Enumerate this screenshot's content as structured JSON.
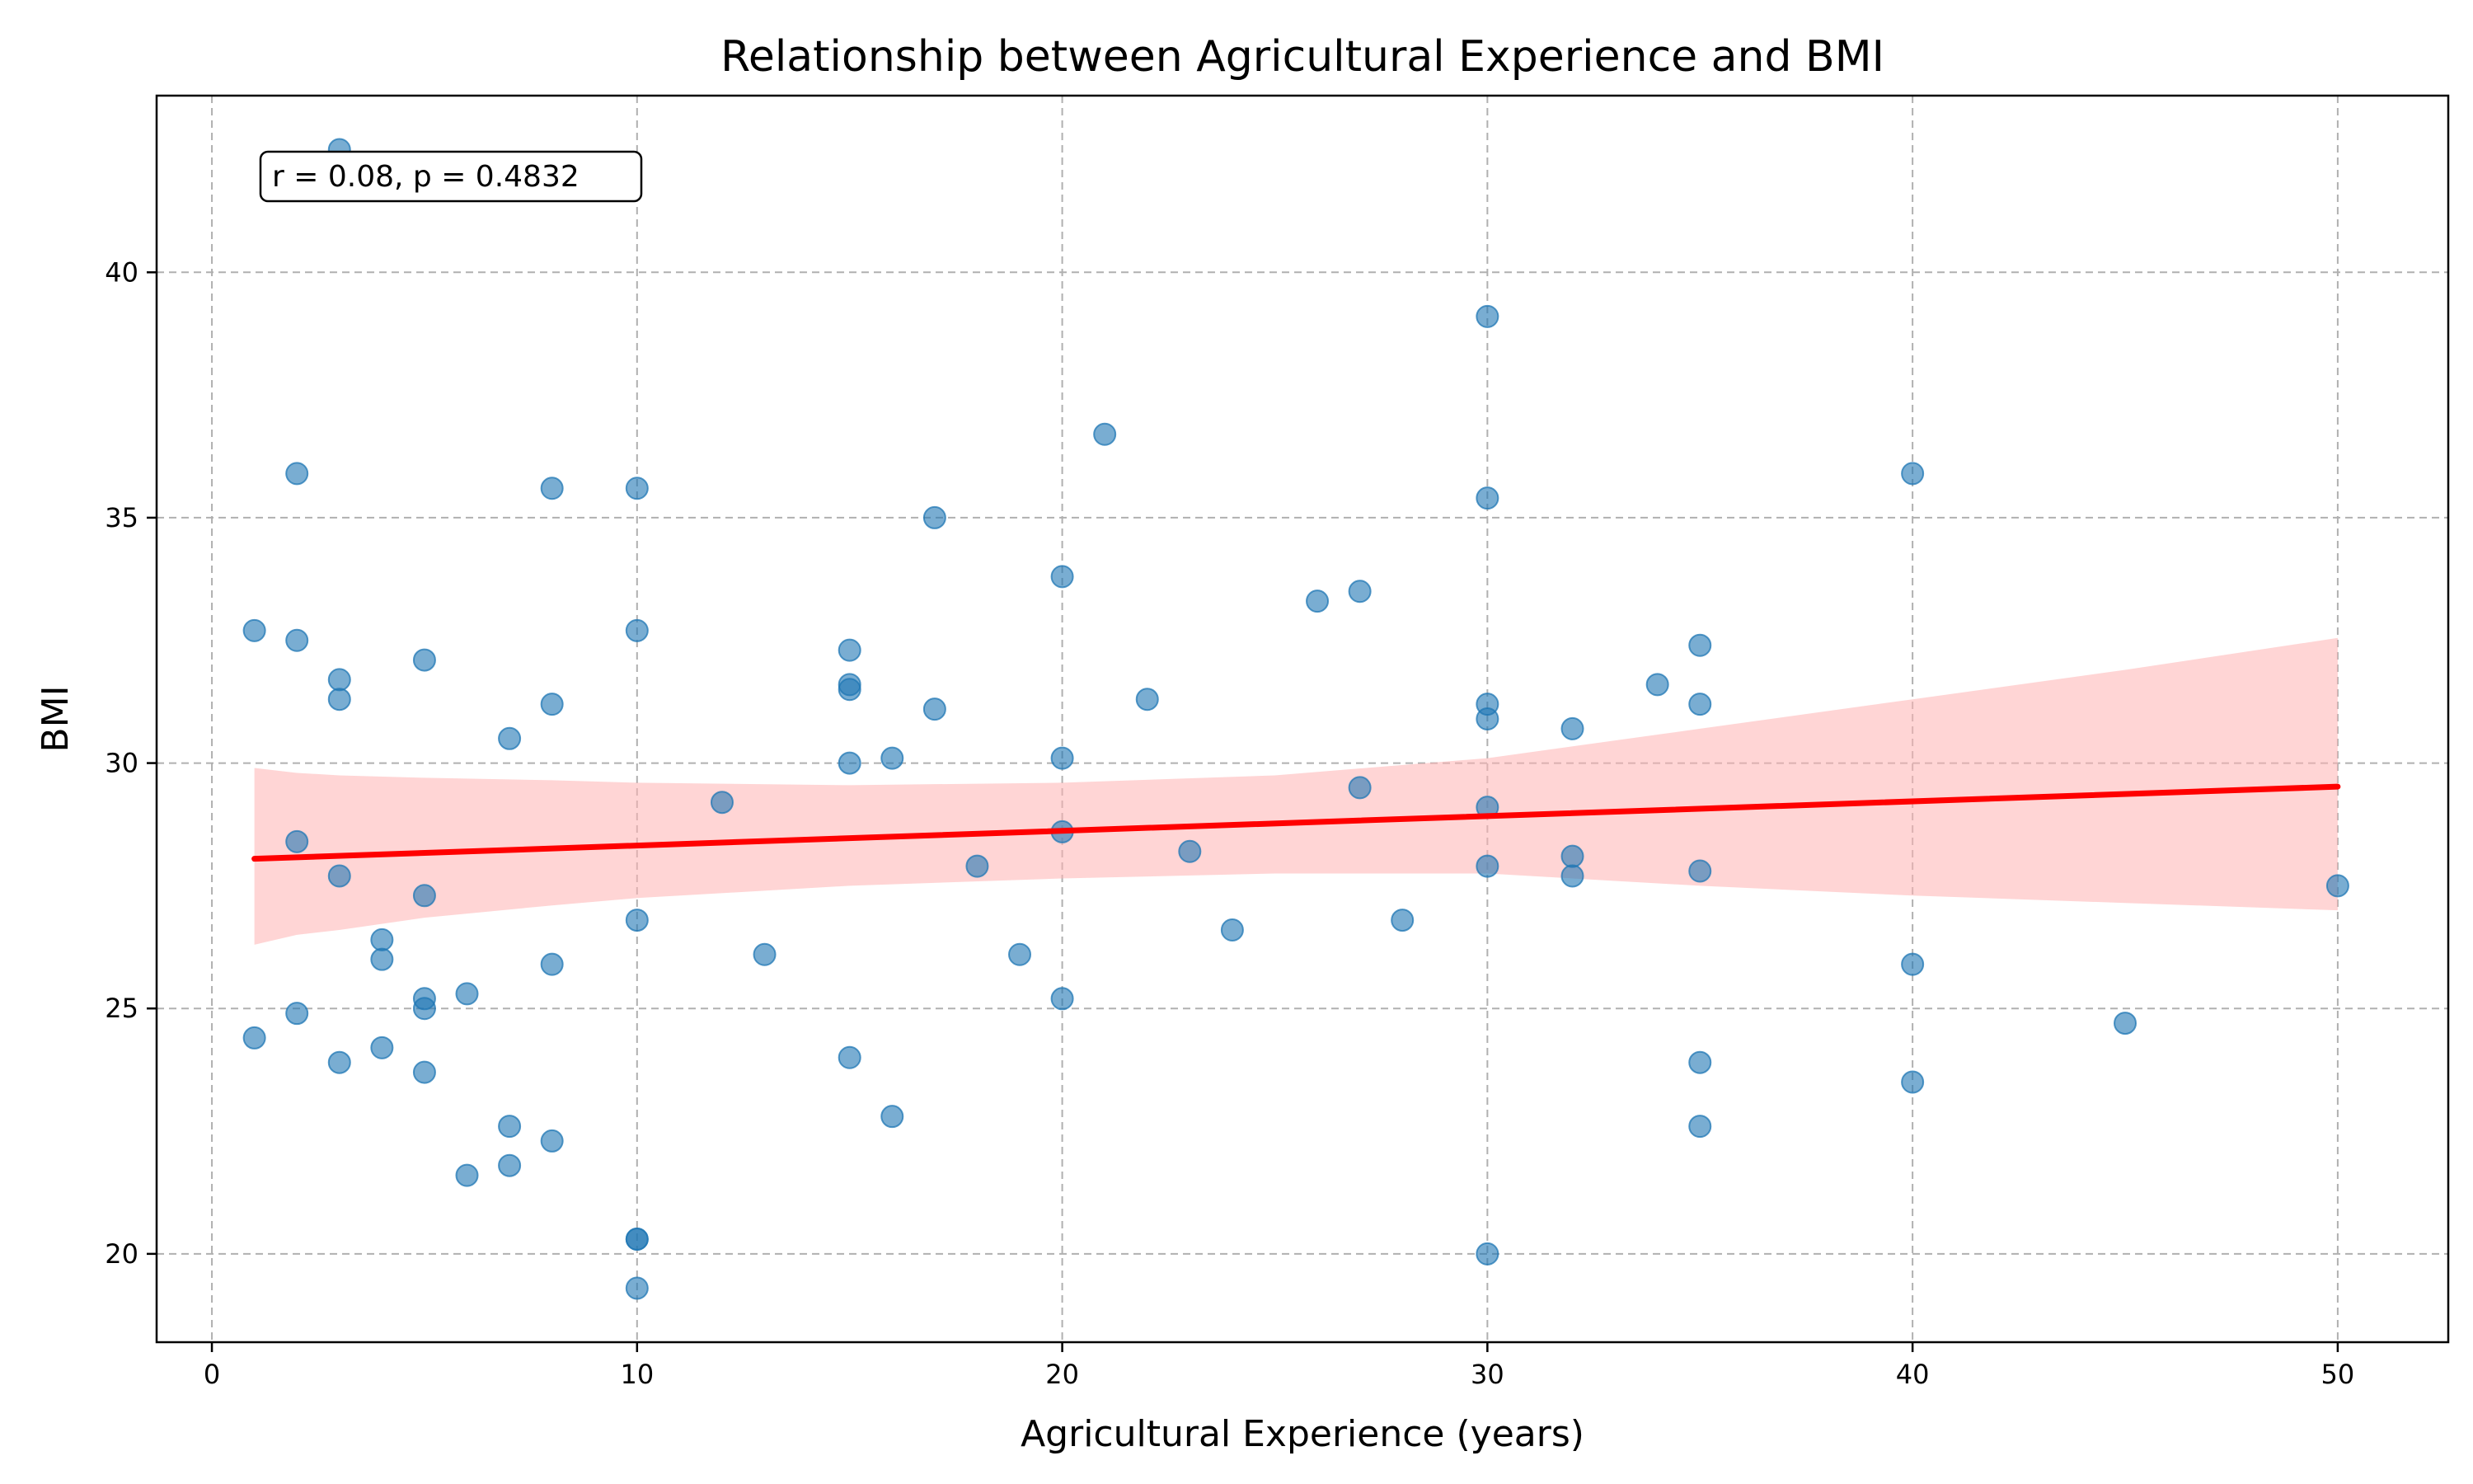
{
  "chart_data": {
    "type": "scatter",
    "title": "Relationship between Agricultural Experience and BMI",
    "xlabel": "Agricultural Experience (years)",
    "ylabel": "BMI",
    "xlim": [
      -1.3,
      52.6
    ],
    "ylim": [
      18.2,
      43.6
    ],
    "xticks": [
      0,
      10,
      20,
      30,
      40,
      50
    ],
    "yticks": [
      20,
      25,
      30,
      35,
      40
    ],
    "grid": true,
    "annotation": "r = 0.08, p = 0.4832",
    "colors": {
      "points": "#1f77b4",
      "regression_line": "#ff0000",
      "confidence_band": "#ffb3b3",
      "grid": "#b0b0b0"
    },
    "points": [
      [
        1,
        32.7
      ],
      [
        1,
        24.4
      ],
      [
        2,
        35.9
      ],
      [
        2,
        32.5
      ],
      [
        2,
        28.4
      ],
      [
        2,
        24.9
      ],
      [
        3,
        42.5
      ],
      [
        3,
        31.7
      ],
      [
        3,
        31.3
      ],
      [
        3,
        27.7
      ],
      [
        3,
        23.9
      ],
      [
        4,
        26.4
      ],
      [
        4,
        26.0
      ],
      [
        4,
        24.2
      ],
      [
        5,
        32.1
      ],
      [
        5,
        27.3
      ],
      [
        5,
        25.2
      ],
      [
        5,
        25.0
      ],
      [
        5,
        23.7
      ],
      [
        6,
        25.3
      ],
      [
        6,
        21.6
      ],
      [
        7,
        30.5
      ],
      [
        7,
        22.6
      ],
      [
        7,
        21.8
      ],
      [
        8,
        35.6
      ],
      [
        8,
        31.2
      ],
      [
        8,
        25.9
      ],
      [
        8,
        22.3
      ],
      [
        10,
        35.6
      ],
      [
        10,
        32.7
      ],
      [
        10,
        26.8
      ],
      [
        10,
        20.3
      ],
      [
        10,
        20.3
      ],
      [
        10,
        19.3
      ],
      [
        12,
        29.2
      ],
      [
        13,
        26.1
      ],
      [
        15,
        32.3
      ],
      [
        15,
        31.6
      ],
      [
        15,
        31.5
      ],
      [
        15,
        30.0
      ],
      [
        15,
        24.0
      ],
      [
        16,
        30.1
      ],
      [
        16,
        22.8
      ],
      [
        17,
        35.0
      ],
      [
        17,
        31.1
      ],
      [
        18,
        27.9
      ],
      [
        19,
        26.1
      ],
      [
        20,
        33.8
      ],
      [
        20,
        30.1
      ],
      [
        20,
        28.6
      ],
      [
        20,
        25.2
      ],
      [
        21,
        36.7
      ],
      [
        22,
        31.3
      ],
      [
        23,
        28.2
      ],
      [
        24,
        26.6
      ],
      [
        26,
        33.3
      ],
      [
        27,
        33.5
      ],
      [
        27,
        29.5
      ],
      [
        28,
        26.8
      ],
      [
        30,
        39.1
      ],
      [
        30,
        35.4
      ],
      [
        30,
        31.2
      ],
      [
        30,
        30.9
      ],
      [
        30,
        29.1
      ],
      [
        30,
        27.9
      ],
      [
        30,
        20.0
      ],
      [
        32,
        30.7
      ],
      [
        32,
        28.1
      ],
      [
        32,
        27.7
      ],
      [
        34,
        31.6
      ],
      [
        35,
        32.4
      ],
      [
        35,
        31.2
      ],
      [
        35,
        27.8
      ],
      [
        35,
        23.9
      ],
      [
        35,
        22.6
      ],
      [
        40,
        35.9
      ],
      [
        40,
        25.9
      ],
      [
        40,
        23.5
      ],
      [
        45,
        24.7
      ],
      [
        50,
        27.5
      ]
    ],
    "regression": {
      "x": [
        1,
        50
      ],
      "y": [
        28.05,
        29.52
      ]
    },
    "confidence_band": {
      "x": [
        1,
        2,
        3,
        5,
        8,
        10,
        15,
        20,
        25,
        30,
        35,
        40,
        45,
        50
      ],
      "upper": [
        29.9,
        29.8,
        29.75,
        29.7,
        29.65,
        29.6,
        29.55,
        29.6,
        29.75,
        30.1,
        30.7,
        31.3,
        31.9,
        32.55
      ],
      "lower": [
        26.3,
        26.5,
        26.6,
        26.85,
        27.1,
        27.25,
        27.5,
        27.65,
        27.75,
        27.75,
        27.5,
        27.3,
        27.15,
        27.0
      ]
    }
  }
}
